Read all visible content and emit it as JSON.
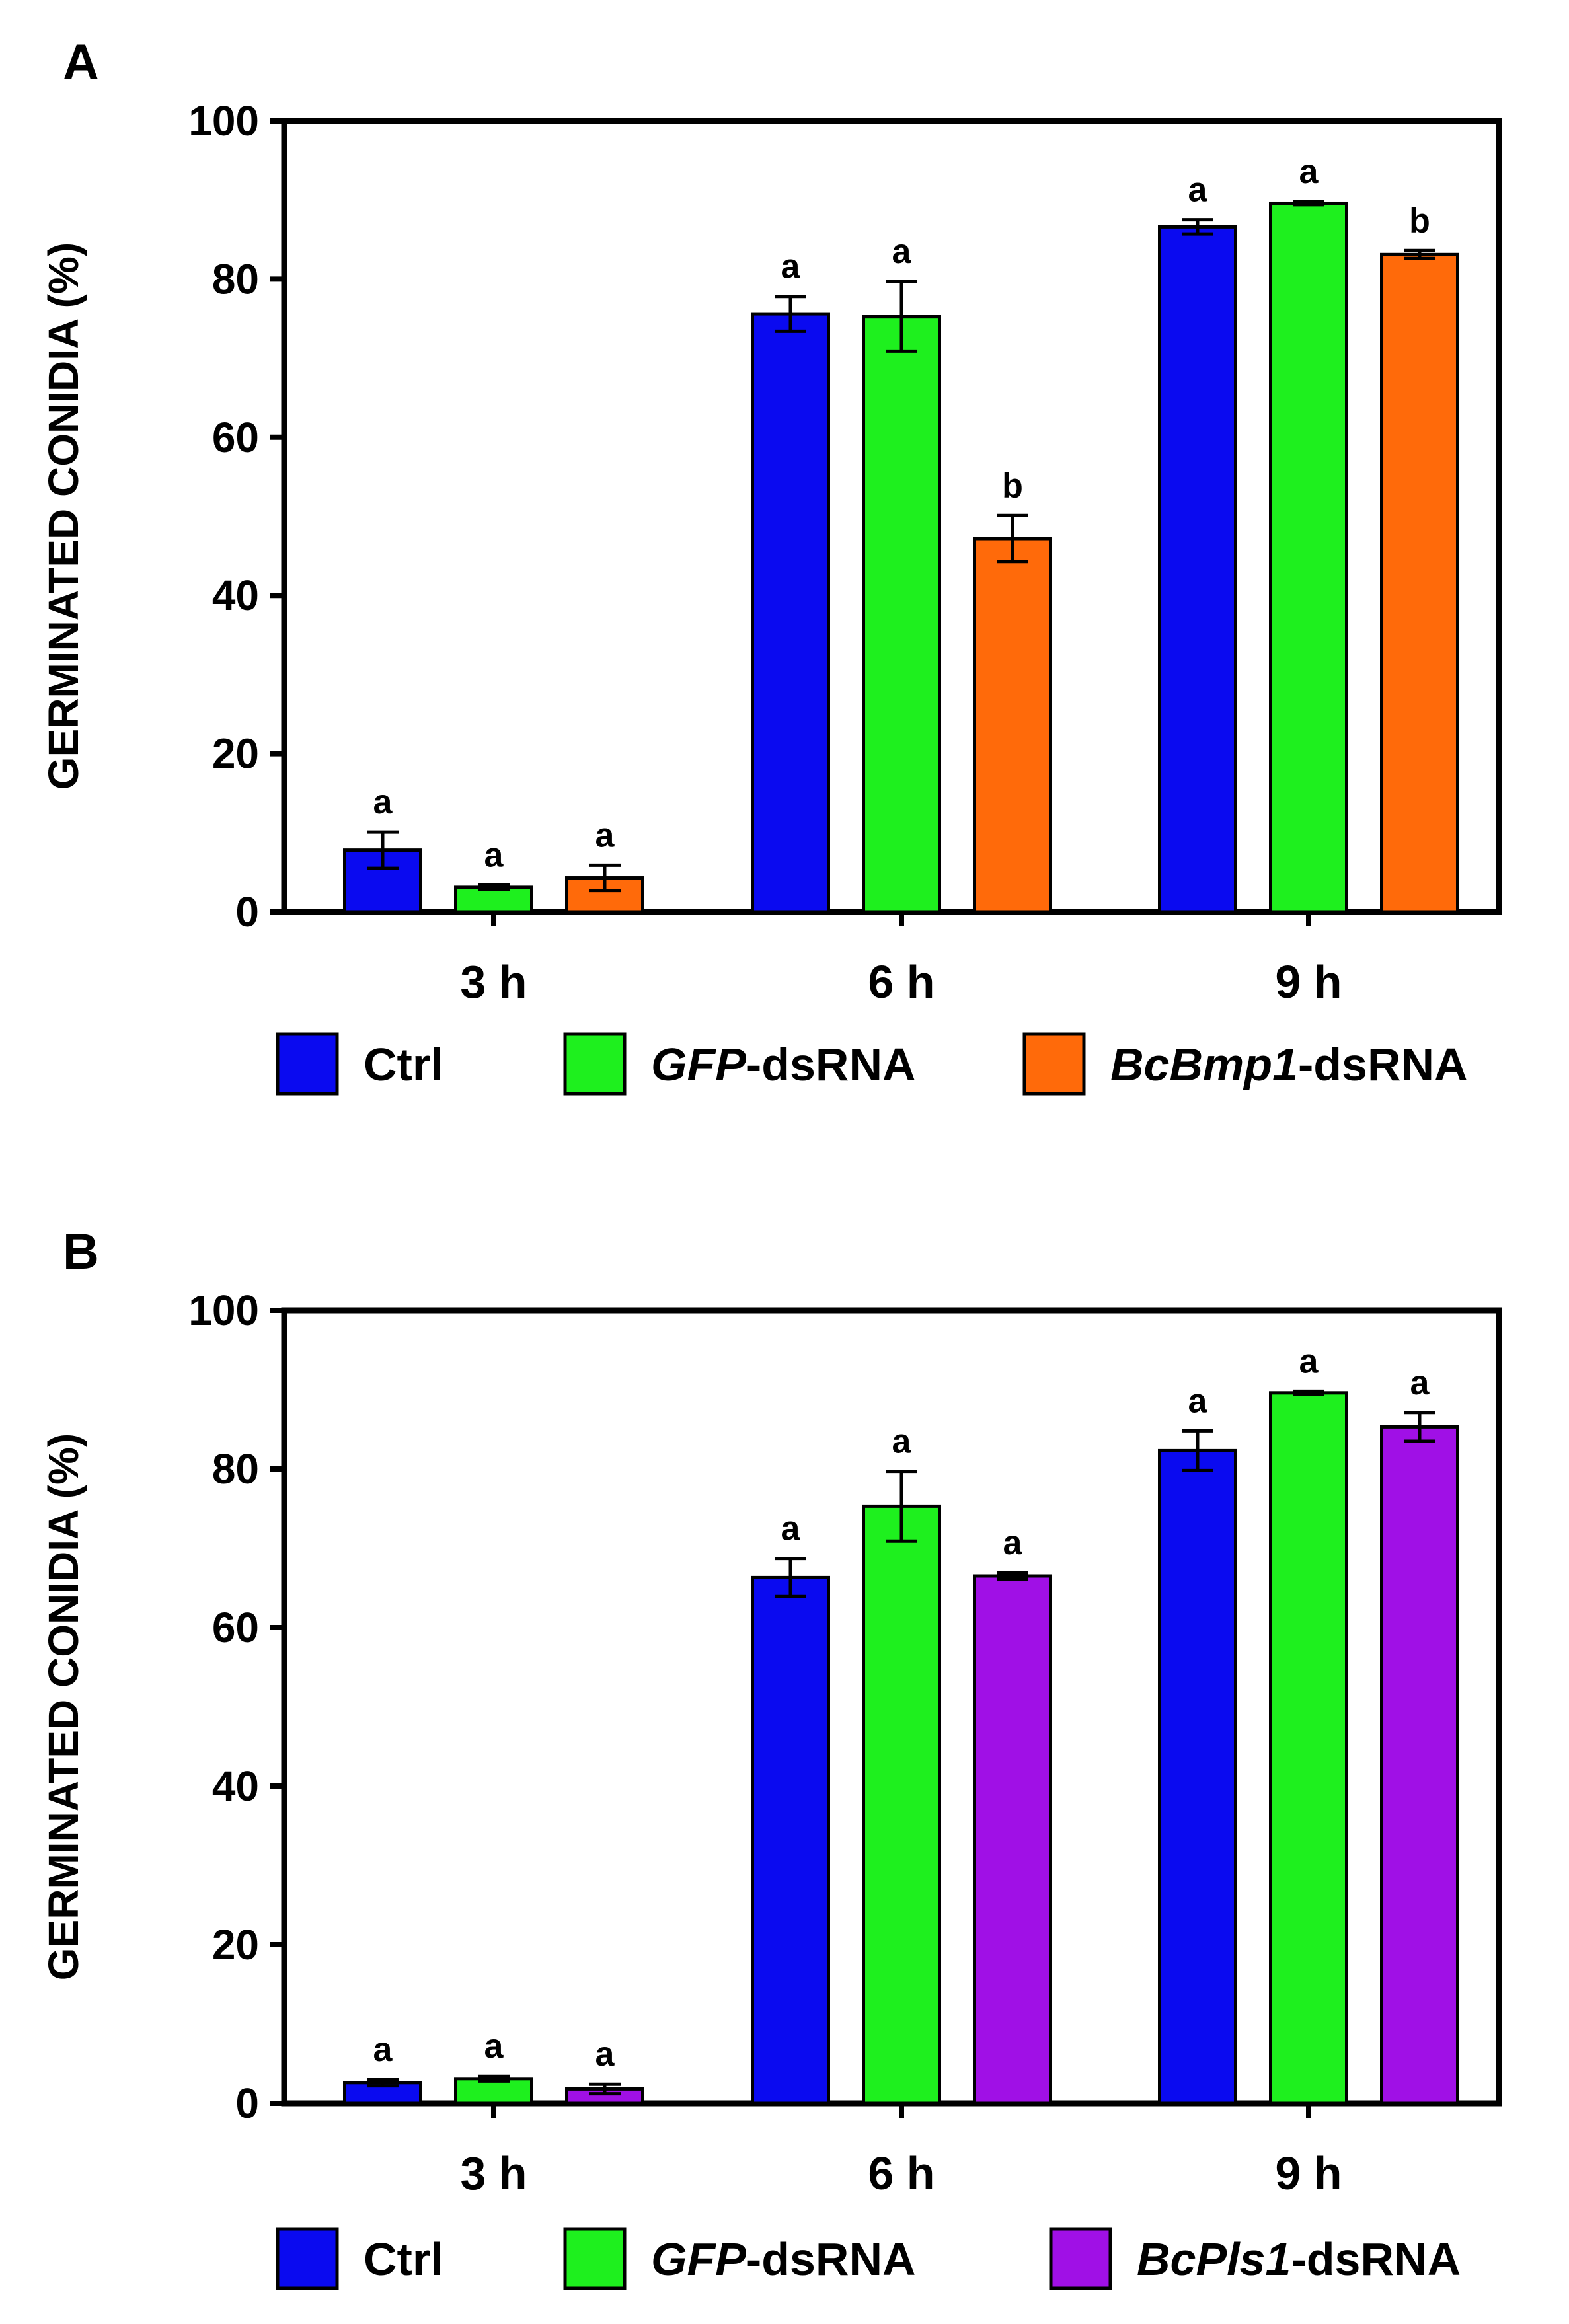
{
  "chart_data": [
    {
      "panel": "A",
      "type": "bar",
      "ylabel": "GERMINATED CONIDIA (%)",
      "ylim": [
        0,
        100
      ],
      "yticks": [
        0,
        20,
        40,
        60,
        80,
        100
      ],
      "categories": [
        "3 h",
        "6 h",
        "9 h"
      ],
      "legend_position": "bottom",
      "series": [
        {
          "name": "Ctrl",
          "name_italic": "",
          "name_suffix": "Ctrl",
          "color": "#0A0AF0",
          "values": [
            7.8,
            75.6,
            86.6
          ],
          "errors": [
            2.3,
            2.2,
            0.9
          ],
          "sig": [
            "a",
            "a",
            "a"
          ]
        },
        {
          "name": "GFP-dsRNA",
          "name_italic": "GFP",
          "name_suffix": "-dsRNA",
          "color": "#1EF01E",
          "values": [
            3.1,
            75.3,
            89.6
          ],
          "errors": [
            0.3,
            4.4,
            0.2
          ],
          "sig": [
            "a",
            "a",
            "a"
          ]
        },
        {
          "name": "BcBmp1-dsRNA",
          "name_italic": "BcBmp1",
          "name_suffix": "-dsRNA",
          "color": "#FF6A0A",
          "values": [
            4.3,
            47.2,
            83.1
          ],
          "errors": [
            1.6,
            2.9,
            0.5
          ],
          "sig": [
            "a",
            "b",
            "b"
          ]
        }
      ]
    },
    {
      "panel": "B",
      "type": "bar",
      "ylabel": "GERMINATED CONIDIA (%)",
      "ylim": [
        0,
        100
      ],
      "yticks": [
        0,
        20,
        40,
        60,
        80,
        100
      ],
      "categories": [
        "3 h",
        "6 h",
        "9 h"
      ],
      "legend_position": "bottom",
      "series": [
        {
          "name": "Ctrl",
          "name_italic": "",
          "name_suffix": "Ctrl",
          "color": "#0A0AF0",
          "values": [
            2.6,
            66.3,
            82.3
          ],
          "errors": [
            0.4,
            2.4,
            2.5
          ],
          "sig": [
            "a",
            "a",
            "a"
          ]
        },
        {
          "name": "GFP-dsRNA",
          "name_italic": "GFP",
          "name_suffix": "-dsRNA",
          "color": "#1EF01E",
          "values": [
            3.1,
            75.3,
            89.6
          ],
          "errors": [
            0.3,
            4.4,
            0.2
          ],
          "sig": [
            "a",
            "a",
            "a"
          ]
        },
        {
          "name": "BcPls1-dsRNA",
          "name_italic": "BcPls1",
          "name_suffix": "-dsRNA",
          "color": "#A010E6",
          "values": [
            1.8,
            66.5,
            85.3
          ],
          "errors": [
            0.6,
            0.4,
            1.8
          ],
          "sig": [
            "a",
            "a",
            "a"
          ]
        }
      ]
    }
  ]
}
